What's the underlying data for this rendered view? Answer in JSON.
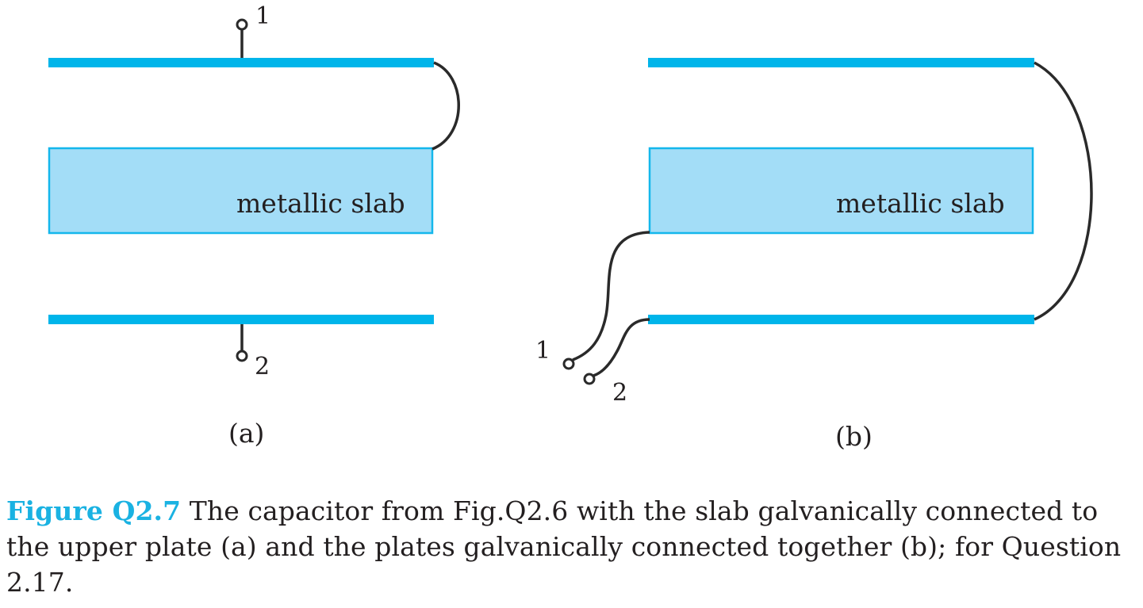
{
  "colors": {
    "plate": "#00b5ea",
    "slab_fill": "#a3ddf7",
    "slab_stroke": "#14b7ec",
    "wire": "#2a2a2a",
    "text": "#231f20",
    "caption_label": "#1ab2e2"
  },
  "panel_a": {
    "slab_label": "metallic slab",
    "terminal_1": "1",
    "terminal_2": "2",
    "sublabel": "(a)"
  },
  "panel_b": {
    "slab_label": "metallic slab",
    "terminal_1": "1",
    "terminal_2": "2",
    "sublabel": "(b)"
  },
  "caption": {
    "label": "Figure Q2.7",
    "text": "The capacitor from Fig.Q2.6 with the slab galvanically connected to the upper plate (a) and the plates galvanically connected together (b); for Question 2.17."
  }
}
